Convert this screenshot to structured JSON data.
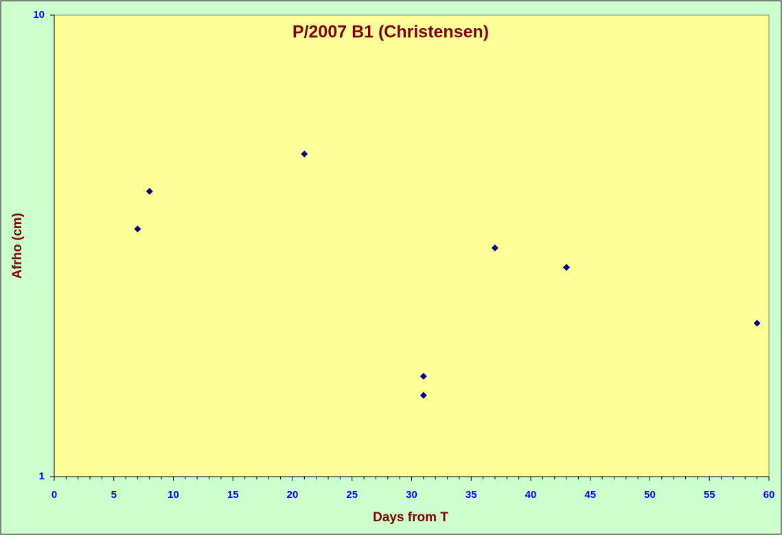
{
  "chart_data": {
    "type": "scatter",
    "title": "P/2007 B1 (Christensen)",
    "x_label": "Days from T",
    "y_label": "Afrho (cm)",
    "series": [
      {
        "color": "#000080",
        "x": [
          7,
          8,
          21,
          31,
          31,
          37,
          43,
          59
        ],
        "values": [
          3.44,
          4.15,
          5.0,
          1.65,
          1.5,
          3.13,
          2.84,
          2.15
        ]
      }
    ],
    "xlim": [
      0,
      60
    ],
    "xticks": [
      0,
      5,
      10,
      15,
      20,
      25,
      30,
      35,
      40,
      45,
      50,
      55,
      60
    ],
    "ylim": [
      1,
      10
    ],
    "yticks": [
      1,
      10
    ],
    "ylog": true,
    "grid": false
  }
}
